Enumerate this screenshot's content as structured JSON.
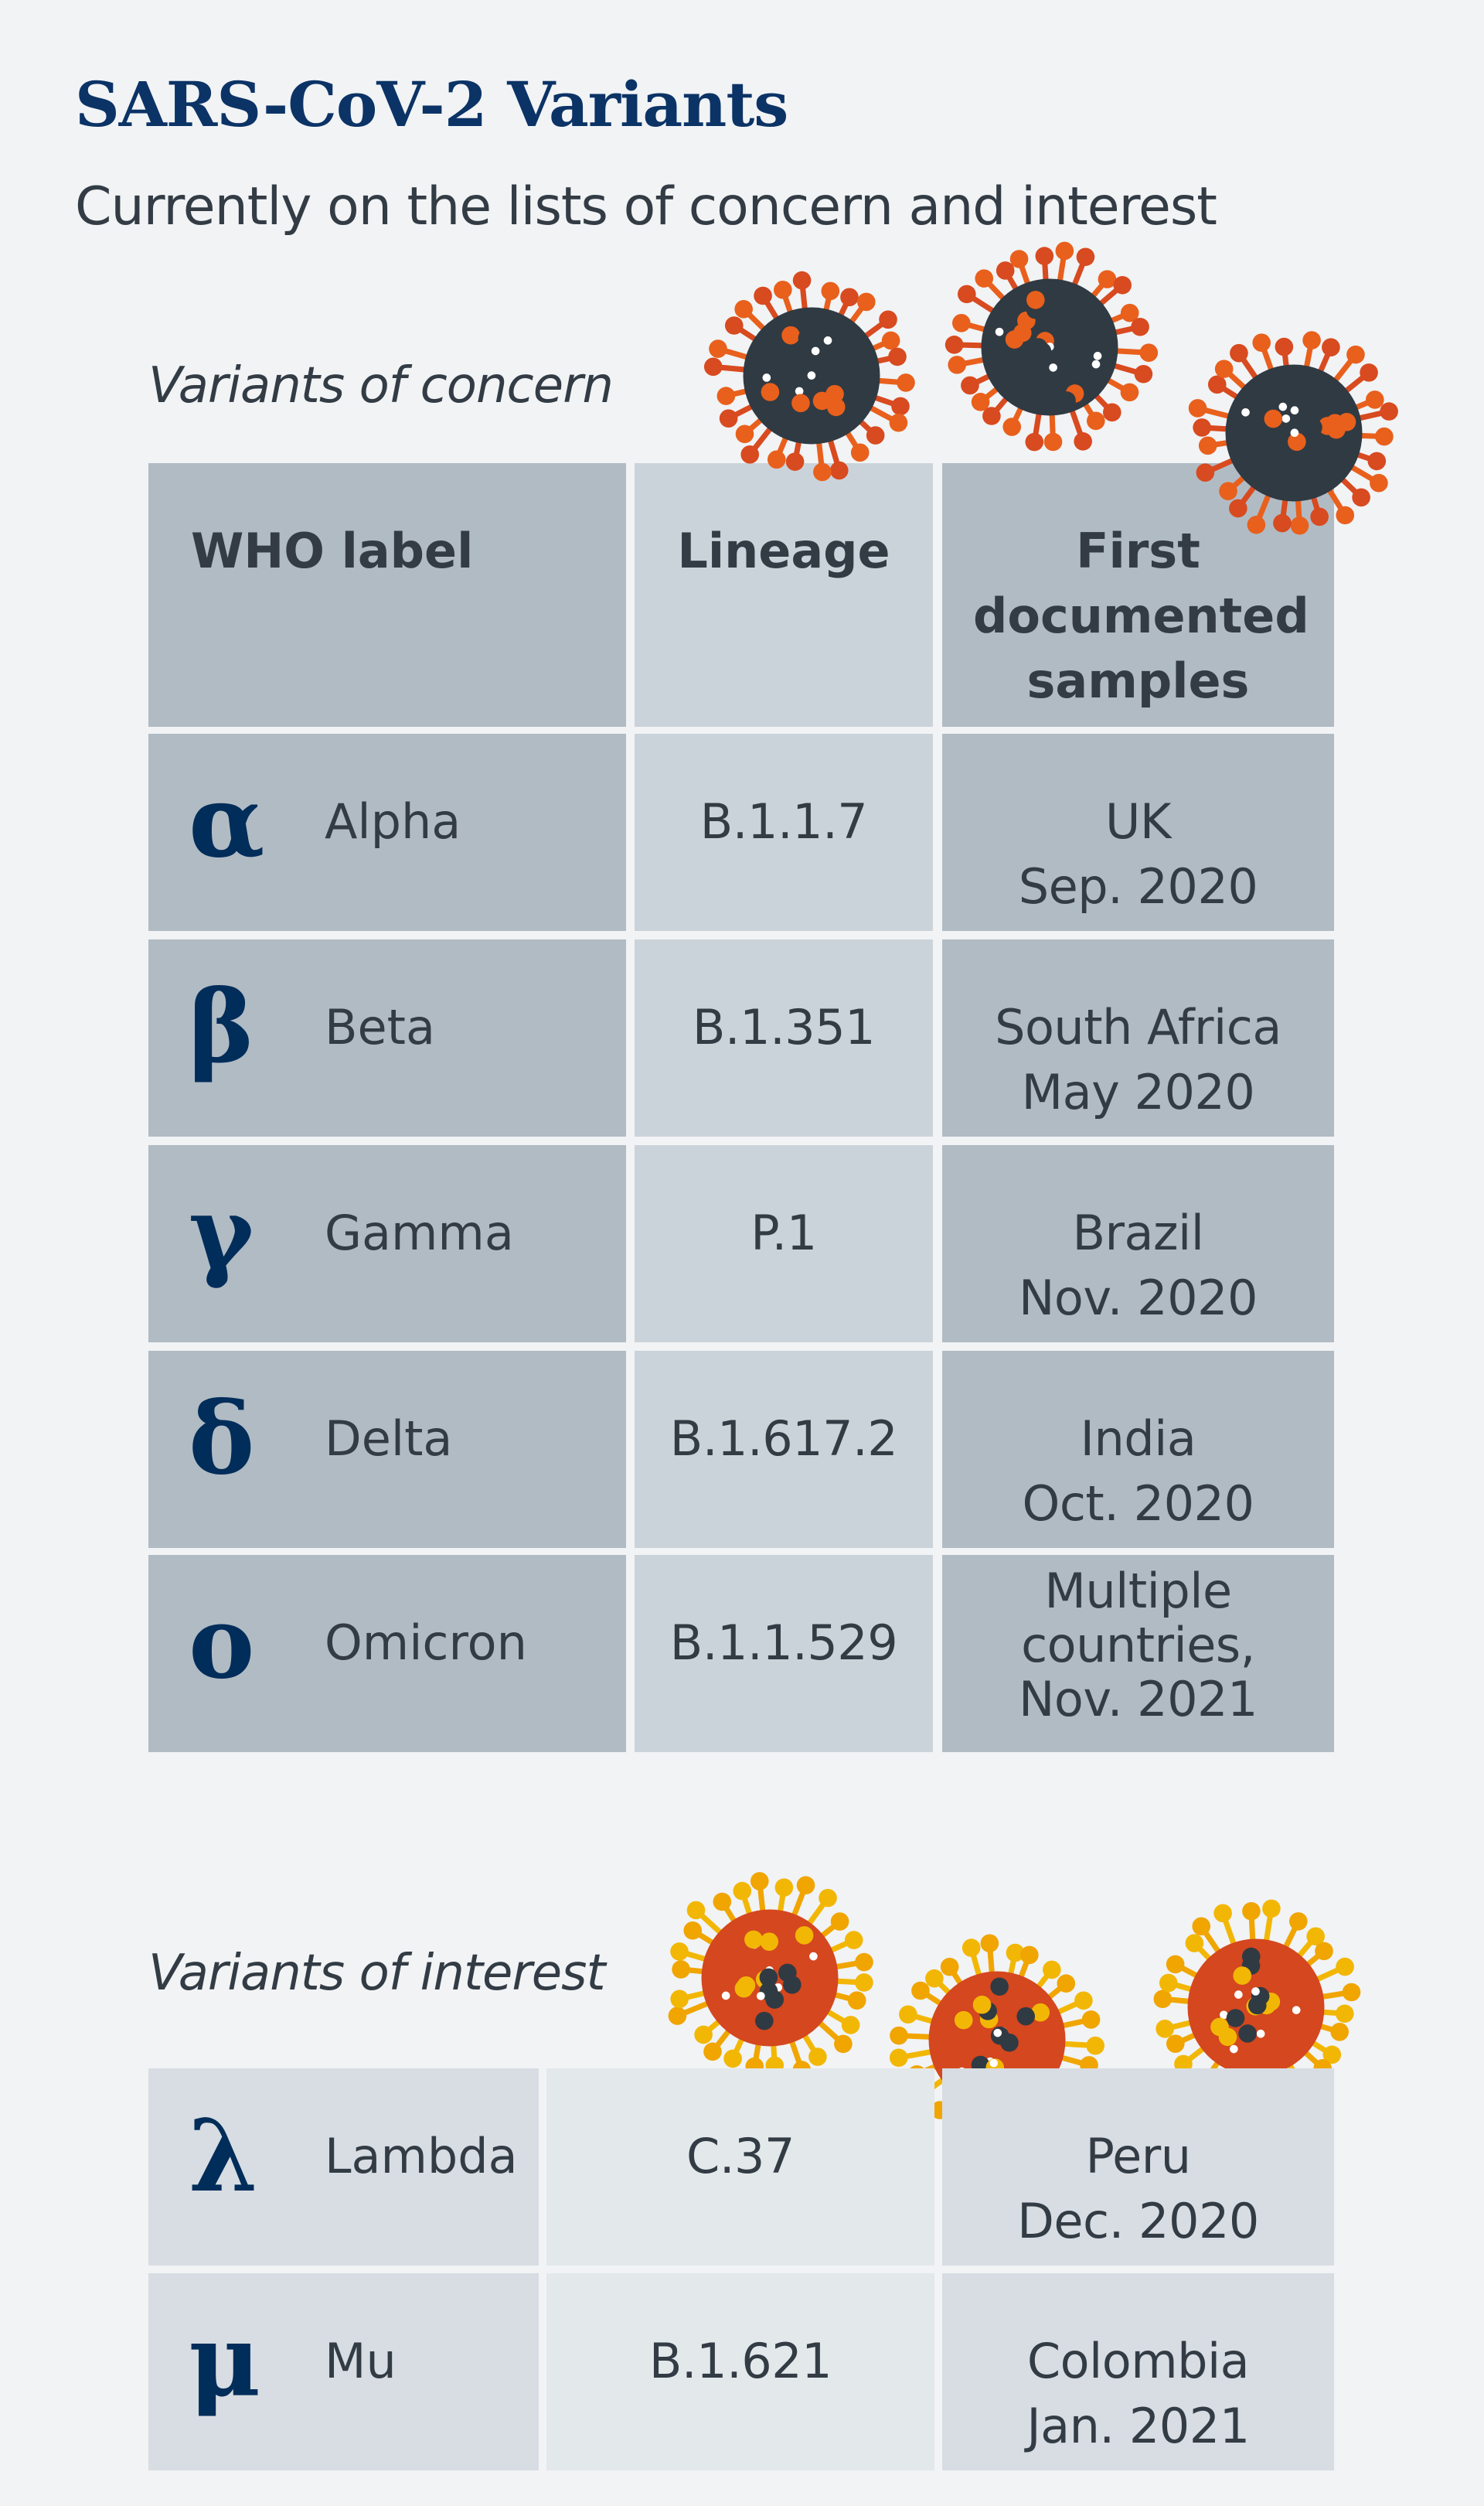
{
  "title": "SARS-CoV-2 Variants",
  "subtitle": "Currently on the lists of concern and interest",
  "concern": {
    "heading": "Variants of concern",
    "headers": {
      "who": "WHO label",
      "lineage": "Lineage",
      "first": "First documented samples"
    },
    "rows": [
      {
        "greek": "α",
        "name": "Alpha",
        "lineage": "B.1.1.7",
        "first": "UK\nSep. 2020"
      },
      {
        "greek": "β",
        "name": "Beta",
        "lineage": "B.1.351",
        "first": "South Africa\nMay 2020"
      },
      {
        "greek": "γ",
        "name": "Gamma",
        "lineage": "P.1",
        "first": "Brazil\nNov. 2020"
      },
      {
        "greek": "δ",
        "name": "Delta",
        "lineage": "B.1.617.2",
        "first": "India\nOct. 2020"
      },
      {
        "greek": "ο",
        "name": "Omicron",
        "lineage": "B.1.1.529",
        "first": "Multiple\ncountries,\nNov. 2021"
      }
    ]
  },
  "interest": {
    "heading": "Variants of interest",
    "rows": [
      {
        "greek": "λ",
        "name": "Lambda",
        "lineage": "C.37",
        "first": "Peru\nDec. 2020"
      },
      {
        "greek": "μ",
        "name": "Mu",
        "lineage": "B.1.621",
        "first": "Colombia\nJan. 2021"
      }
    ]
  },
  "colors": {
    "background": "#f1f3f5",
    "title": "#0c3366",
    "greek": "#002d5a",
    "concern_virus_body": "#303a43",
    "concern_virus_spikes": [
      "#e8601c",
      "#d84a1f"
    ],
    "interest_virus_body": "#d4471f",
    "interest_virus_spikes": [
      "#f2b705",
      "#f0a500"
    ]
  },
  "icons": {
    "concern": "coronavirus-dark-icon",
    "interest": "coronavirus-red-icon"
  }
}
